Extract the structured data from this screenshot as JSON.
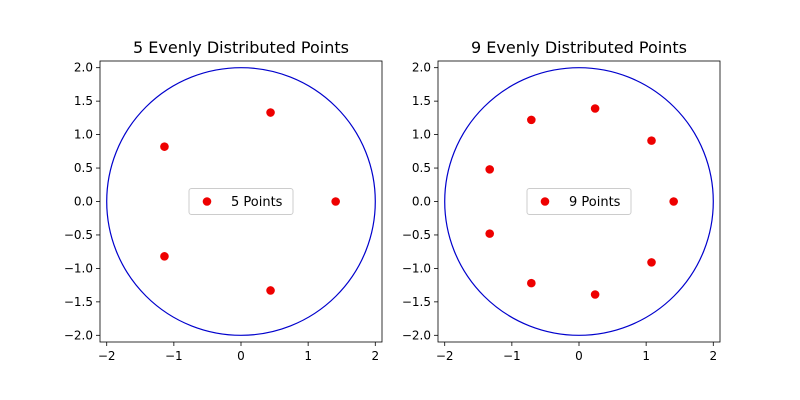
{
  "chart_data": [
    {
      "type": "scatter",
      "title": "5 Evenly Distributed Points",
      "xlim": [
        -2.1,
        2.1
      ],
      "ylim": [
        -2.1,
        2.1
      ],
      "x_ticks": [
        -2,
        -1,
        0,
        1,
        2
      ],
      "y_ticks": [
        -2.0,
        -1.5,
        -1.0,
        -0.5,
        0.0,
        0.5,
        1.0,
        1.5,
        2.0
      ],
      "x_tick_labels": [
        "−2",
        "−1",
        "0",
        "1",
        "2"
      ],
      "y_tick_labels": [
        "−2.0",
        "−1.5",
        "−1.0",
        "−0.5",
        "0.0",
        "0.5",
        "1.0",
        "1.5",
        "2.0"
      ],
      "grid": false,
      "legend_position": "center",
      "circle": {
        "center": [
          0,
          0
        ],
        "radius": 2,
        "color": "#0000cc"
      },
      "series": [
        {
          "name": "5 Points",
          "color": "#ee0000",
          "x": [
            1.41,
            0.44,
            -1.14,
            -1.14,
            0.44
          ],
          "y": [
            0.0,
            1.33,
            0.82,
            -0.82,
            -1.33
          ]
        }
      ]
    },
    {
      "type": "scatter",
      "title": "9 Evenly Distributed Points",
      "xlim": [
        -2.1,
        2.1
      ],
      "ylim": [
        -2.1,
        2.1
      ],
      "x_ticks": [
        -2,
        -1,
        0,
        1,
        2
      ],
      "y_ticks": [
        -2.0,
        -1.5,
        -1.0,
        -0.5,
        0.0,
        0.5,
        1.0,
        1.5,
        2.0
      ],
      "x_tick_labels": [
        "−2",
        "−1",
        "0",
        "1",
        "2"
      ],
      "y_tick_labels": [
        "−2.0",
        "−1.5",
        "−1.0",
        "−0.5",
        "0.0",
        "0.5",
        "1.0",
        "1.5",
        "2.0"
      ],
      "grid": false,
      "legend_position": "center",
      "circle": {
        "center": [
          0,
          0
        ],
        "radius": 2,
        "color": "#0000cc"
      },
      "series": [
        {
          "name": "9 Points",
          "color": "#ee0000",
          "x": [
            1.41,
            1.08,
            0.24,
            -0.71,
            -1.33,
            -1.33,
            -0.71,
            0.24,
            1.08
          ],
          "y": [
            0.0,
            0.91,
            1.39,
            1.22,
            0.48,
            -0.48,
            -1.22,
            -1.39,
            -0.91
          ]
        }
      ]
    }
  ]
}
